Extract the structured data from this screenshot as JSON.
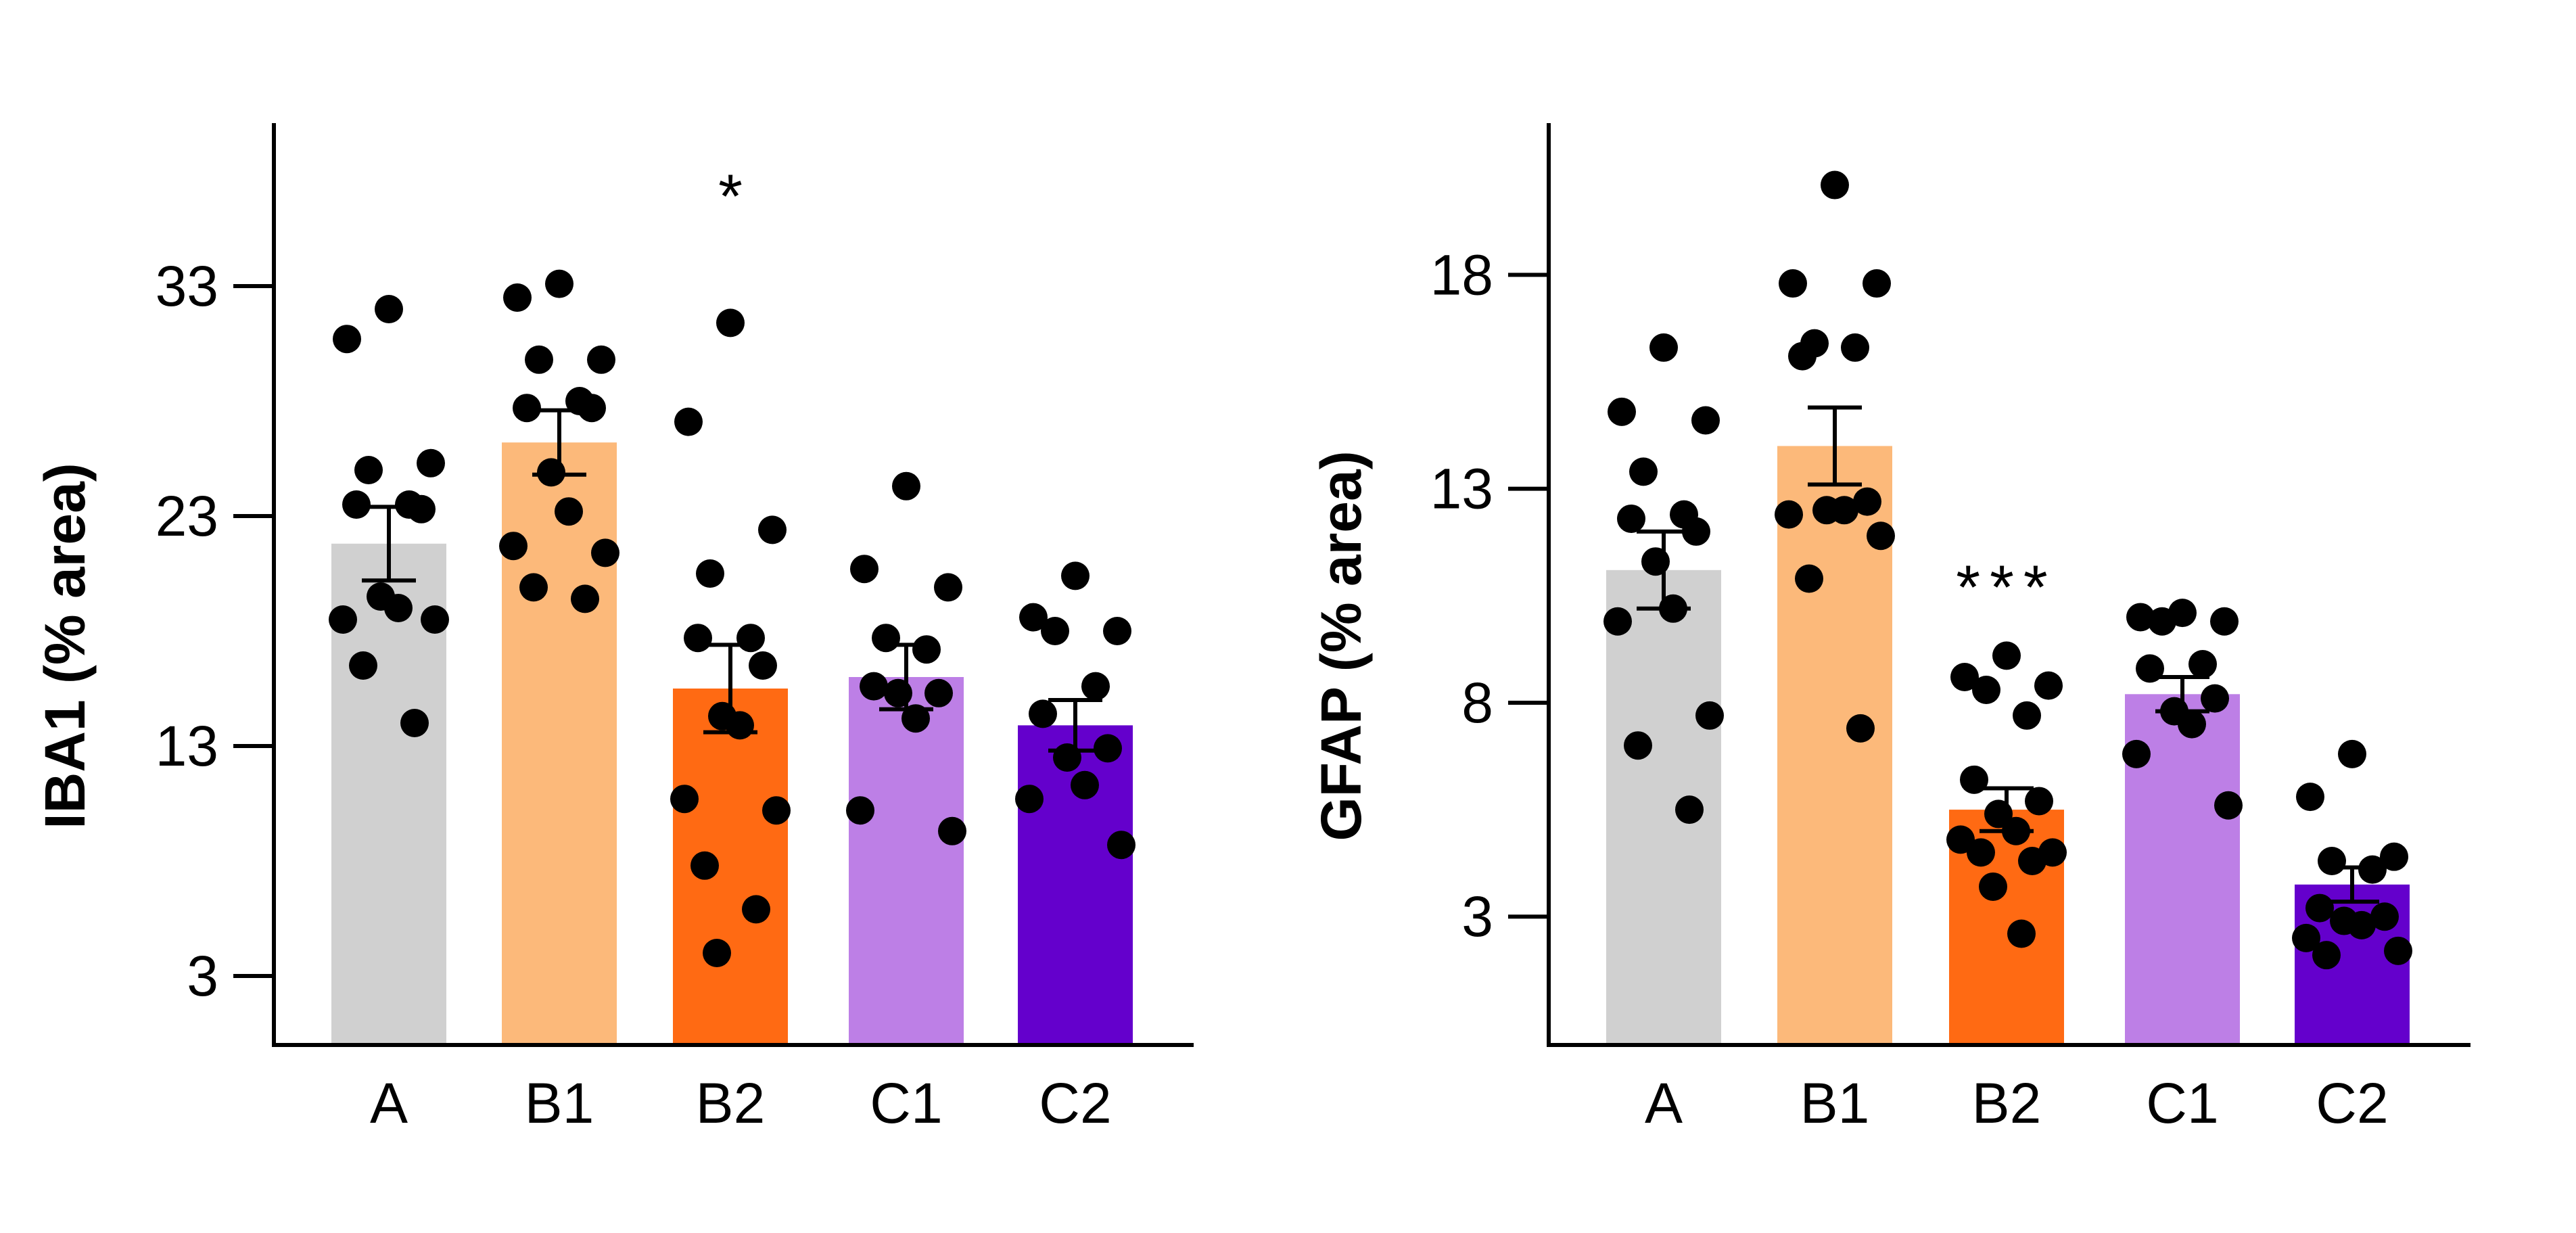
{
  "chart_data": [
    {
      "type": "bar",
      "ylabel": "IBA1 (% area)",
      "ylim": [
        0,
        40
      ],
      "yticks": [
        3,
        13,
        23,
        33
      ],
      "categories": [
        "A",
        "B1",
        "B2",
        "C1",
        "C2"
      ],
      "colors": [
        "#d0d0d0",
        "#fcb97a",
        "#ff6a13",
        "#bd7fe6",
        "#6400cc"
      ],
      "values": [
        21.8,
        26.2,
        15.5,
        16.0,
        13.9
      ],
      "sem": [
        1.6,
        1.4,
        1.9,
        1.4,
        1.1
      ],
      "significance": [
        "",
        "",
        "*",
        "",
        ""
      ],
      "points": [
        [
          32.0,
          30.7,
          25.3,
          25.0,
          23.5,
          23.5,
          23.3,
          19.5,
          19.0,
          18.5,
          18.5,
          16.5,
          14.0
        ],
        [
          33.1,
          32.5,
          29.8,
          29.8,
          28.0,
          27.7,
          27.7,
          24.9,
          23.2,
          21.7,
          21.4,
          19.9,
          19.4
        ],
        [
          31.4,
          27.1,
          22.4,
          20.5,
          17.7,
          17.7,
          16.5,
          14.3,
          13.9,
          10.7,
          10.2,
          7.8,
          5.9,
          4.0
        ],
        [
          24.3,
          20.7,
          19.9,
          17.7,
          17.2,
          15.6,
          15.3,
          15.3,
          14.2,
          10.2,
          9.3
        ],
        [
          20.4,
          18.6,
          18.0,
          18.0,
          15.6,
          14.4,
          12.9,
          12.5,
          11.3,
          10.7,
          8.7
        ]
      ]
    },
    {
      "type": "bar",
      "ylabel": "GFAP (% area)",
      "ylim": [
        0,
        21.5
      ],
      "yticks": [
        3,
        8,
        13,
        18
      ],
      "categories": [
        "A",
        "B1",
        "B2",
        "C1",
        "C2"
      ],
      "colors": [
        "#d0d0d0",
        "#fcb97a",
        "#ff6a13",
        "#bd7fe6",
        "#6400cc"
      ],
      "values": [
        11.1,
        14.0,
        5.5,
        8.2,
        3.75
      ],
      "sem": [
        0.9,
        0.9,
        0.5,
        0.4,
        0.4
      ],
      "significance": [
        "",
        "",
        "***",
        "",
        ""
      ],
      "points": [
        [
          16.3,
          14.8,
          14.6,
          13.4,
          12.4,
          12.3,
          12.0,
          11.3,
          10.2,
          9.9,
          7.7,
          7.0,
          5.5
        ],
        [
          20.1,
          17.8,
          17.8,
          16.4,
          16.3,
          16.1,
          12.7,
          12.5,
          12.5,
          12.4,
          11.9,
          10.9,
          7.4
        ],
        [
          9.1,
          8.6,
          8.4,
          8.3,
          7.7,
          6.2,
          5.7,
          5.4,
          5.0,
          4.8,
          4.5,
          4.5,
          4.3,
          3.7,
          2.6
        ],
        [
          10.1,
          10.0,
          9.9,
          9.9,
          8.9,
          8.8,
          8.1,
          7.8,
          7.5,
          6.8,
          5.6
        ],
        [
          6.8,
          5.8,
          4.4,
          4.3,
          4.1,
          3.2,
          3.0,
          2.9,
          2.8,
          2.5,
          2.2,
          2.1
        ]
      ]
    }
  ]
}
